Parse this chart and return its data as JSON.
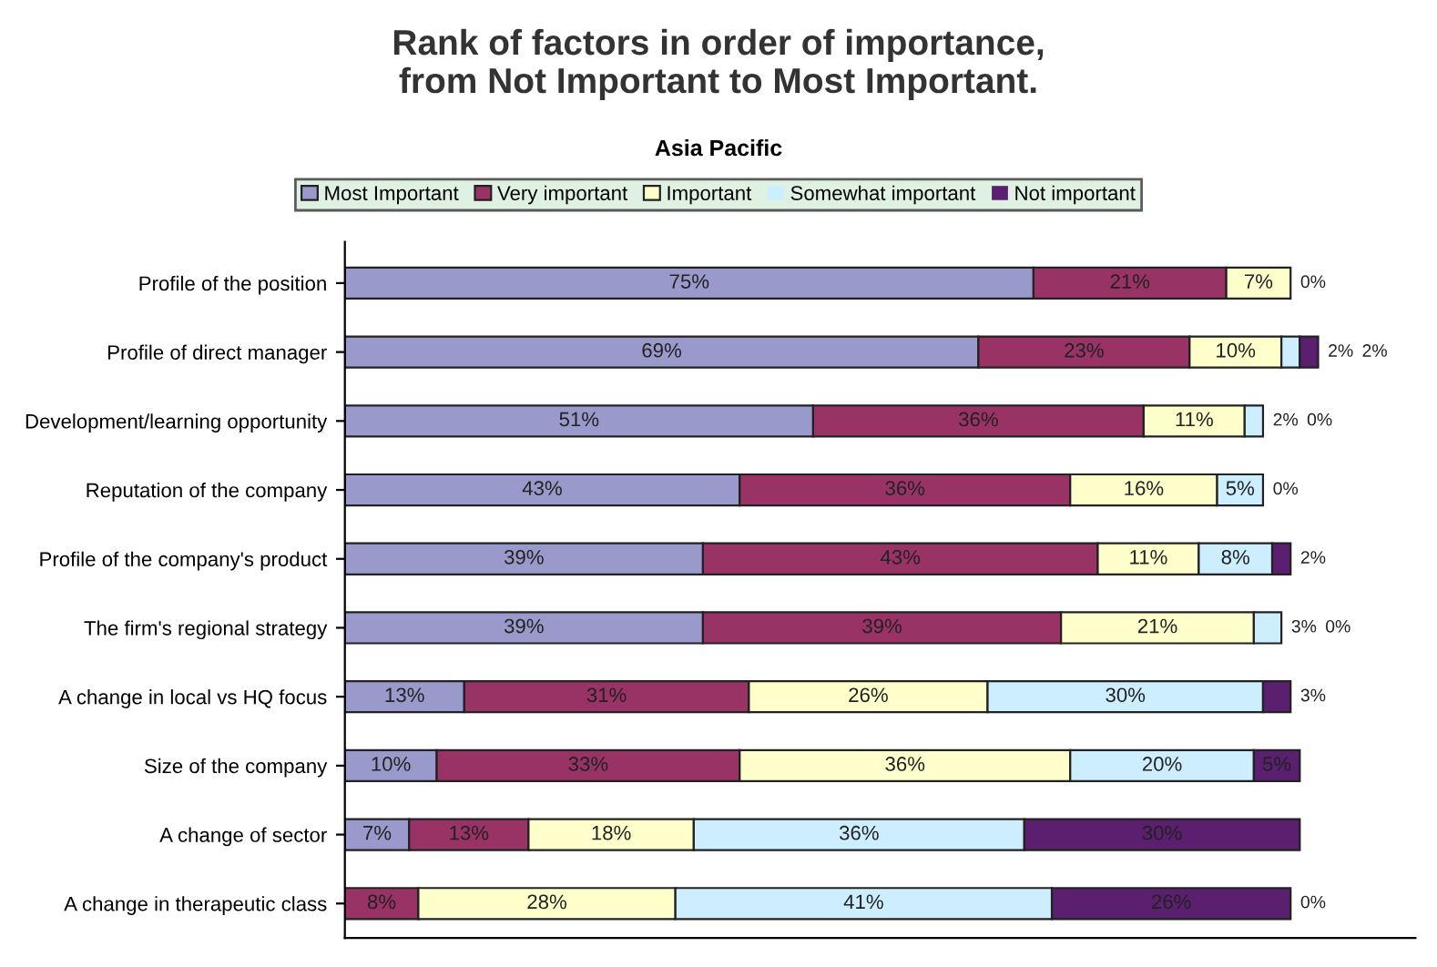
{
  "chart_data": {
    "type": "bar",
    "orientation": "horizontal",
    "stacked": true,
    "title": "Rank of factors in order of importance,\nfrom Not Important to Most Important.",
    "subtitle": "Asia Pacific",
    "categories": [
      "Profile of the position",
      "Profile of direct manager",
      "Development/learning opportunity",
      "Reputation of the company",
      "Profile of the company's product",
      "The firm's regional strategy",
      "A change in local vs HQ focus",
      "Size of the company",
      "A change of sector",
      "A change in therapeutic class"
    ],
    "series": [
      {
        "name": "Most Important",
        "color": "#9999cc",
        "values": [
          75,
          69,
          51,
          43,
          39,
          39,
          13,
          10,
          7,
          0
        ],
        "value_labels": [
          "75%",
          "69%",
          "51%",
          "43%",
          "39%",
          "39%",
          "13%",
          "10%",
          "7%",
          "0%"
        ]
      },
      {
        "name": "Very important",
        "color": "#993366",
        "values": [
          21,
          23,
          36,
          36,
          43,
          39,
          31,
          33,
          13,
          8
        ],
        "value_labels": [
          "21%",
          "23%",
          "36%",
          "36%",
          "43%",
          "39%",
          "31%",
          "33%",
          "13%",
          "8%"
        ]
      },
      {
        "name": "Important",
        "color": "#ffffcc",
        "values": [
          7,
          10,
          11,
          16,
          11,
          21,
          26,
          36,
          18,
          28
        ],
        "value_labels": [
          "7%",
          "10%",
          "11%",
          "16%",
          "11%",
          "21%",
          "26%",
          "36%",
          "18%",
          "28%"
        ]
      },
      {
        "name": "Somewhat important",
        "color": "#cceeff",
        "values": [
          0,
          2,
          2,
          5,
          8,
          3,
          30,
          20,
          36,
          41
        ],
        "value_labels": [
          "0%",
          "2%",
          "2%",
          "5%",
          "8%",
          "3%",
          "30%",
          "20%",
          "36%",
          "41%"
        ]
      },
      {
        "name": "Not important",
        "color": "#5a1f6e",
        "values": [
          0,
          2,
          0,
          0,
          2,
          0,
          3,
          5,
          30,
          26
        ],
        "value_labels": [
          null,
          "2%",
          "0%",
          "0%",
          "2%",
          "0%",
          "3%",
          "5%",
          "30%",
          "26%"
        ]
      }
    ],
    "tick_labels": "y",
    "legend": "top",
    "grid": false
  }
}
